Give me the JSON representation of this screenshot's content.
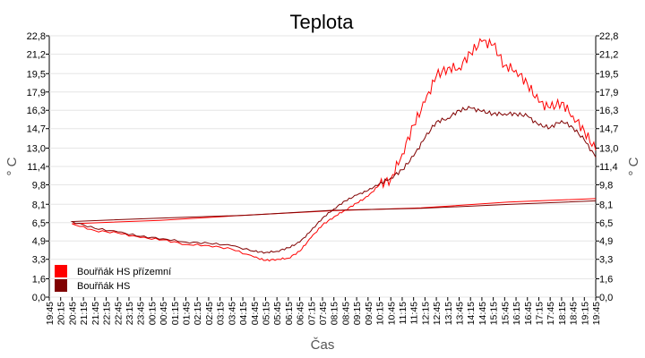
{
  "chart_data": {
    "type": "line",
    "title": "Teplota",
    "xlabel": "Čas",
    "ylabel": "° C",
    "ylim": [
      0,
      22.8
    ],
    "yticks": [
      "0,0",
      "1,6",
      "3,3",
      "4,9",
      "6,5",
      "8,1",
      "9,8",
      "11,4",
      "13,0",
      "14,7",
      "16,3",
      "17,9",
      "19,5",
      "21,2",
      "22,8"
    ],
    "ytick_values": [
      0,
      1.6,
      3.3,
      4.9,
      6.5,
      8.1,
      9.8,
      11.4,
      13.0,
      14.7,
      16.3,
      17.9,
      19.5,
      21.2,
      22.8
    ],
    "xticks": [
      "19:45",
      "20:15",
      "20:45",
      "21:15",
      "21:45",
      "22:15",
      "22:45",
      "23:15",
      "23:45",
      "00:15",
      "00:45",
      "01:15",
      "01:45",
      "02:15",
      "02:45",
      "03:15",
      "03:45",
      "04:15",
      "04:45",
      "05:15",
      "05:45",
      "06:15",
      "06:45",
      "07:15",
      "07:45",
      "08:15",
      "08:45",
      "09:15",
      "09:45",
      "10:15",
      "10:45",
      "11:15",
      "11:45",
      "12:15",
      "12:45",
      "13:15",
      "13:45",
      "14:15",
      "14:45",
      "15:15",
      "15:45",
      "16:15",
      "16:45",
      "17:15",
      "17:45",
      "18:15",
      "18:45",
      "19:15",
      "19:45"
    ],
    "grid": true,
    "legend_position": "bottom-left",
    "series": [
      {
        "name": "Bouřňák HS přízemní",
        "color": "#ff0000",
        "x": [
          "19:45",
          "20:45",
          "21:45",
          "22:45",
          "23:45",
          "00:45",
          "01:45",
          "02:45",
          "03:45",
          "04:45",
          "05:15",
          "05:45",
          "06:15",
          "06:45",
          "07:15",
          "07:45",
          "08:15",
          "08:45",
          "09:15",
          "09:45",
          "10:15",
          "10:45",
          "11:15",
          "11:45",
          "12:15",
          "12:45",
          "13:15",
          "13:45",
          "14:15",
          "14:45",
          "15:15",
          "15:45",
          "16:15",
          "16:45",
          "17:15",
          "17:45",
          "18:15",
          "18:45",
          "19:15",
          "19:45"
        ],
        "values": [
          8.6,
          6.4,
          5.8,
          5.6,
          5.2,
          5.0,
          4.6,
          4.5,
          4.2,
          3.5,
          3.2,
          3.3,
          3.4,
          4.0,
          5.2,
          6.3,
          7.0,
          7.6,
          8.2,
          8.8,
          9.8,
          10.3,
          12.5,
          15.0,
          17.0,
          19.3,
          20.0,
          20.0,
          21.3,
          22.3,
          22.0,
          20.2,
          19.8,
          18.6,
          17.0,
          16.5,
          17.0,
          15.8,
          14.5,
          12.8
        ]
      },
      {
        "name": "Bouřňák HS",
        "color": "#800000",
        "x": [
          "19:45",
          "20:45",
          "21:45",
          "22:45",
          "23:45",
          "00:45",
          "01:45",
          "02:45",
          "03:45",
          "04:45",
          "05:15",
          "05:45",
          "06:15",
          "06:45",
          "07:15",
          "07:45",
          "08:15",
          "08:45",
          "09:15",
          "09:45",
          "10:15",
          "10:45",
          "11:15",
          "11:45",
          "12:15",
          "12:45",
          "13:15",
          "13:45",
          "14:15",
          "14:45",
          "15:15",
          "15:45",
          "16:15",
          "16:45",
          "17:15",
          "17:45",
          "18:15",
          "18:45",
          "19:15",
          "19:45"
        ],
        "values": [
          8.4,
          6.6,
          6.0,
          5.7,
          5.3,
          5.1,
          4.8,
          4.7,
          4.5,
          4.0,
          3.9,
          4.0,
          4.3,
          4.8,
          5.8,
          6.9,
          7.7,
          8.4,
          8.9,
          9.3,
          9.9,
          10.4,
          11.1,
          12.3,
          13.9,
          15.3,
          15.6,
          16.3,
          16.5,
          16.2,
          16.0,
          16.0,
          16.0,
          15.8,
          15.0,
          14.8,
          15.4,
          14.8,
          13.7,
          12.2
        ]
      }
    ]
  }
}
